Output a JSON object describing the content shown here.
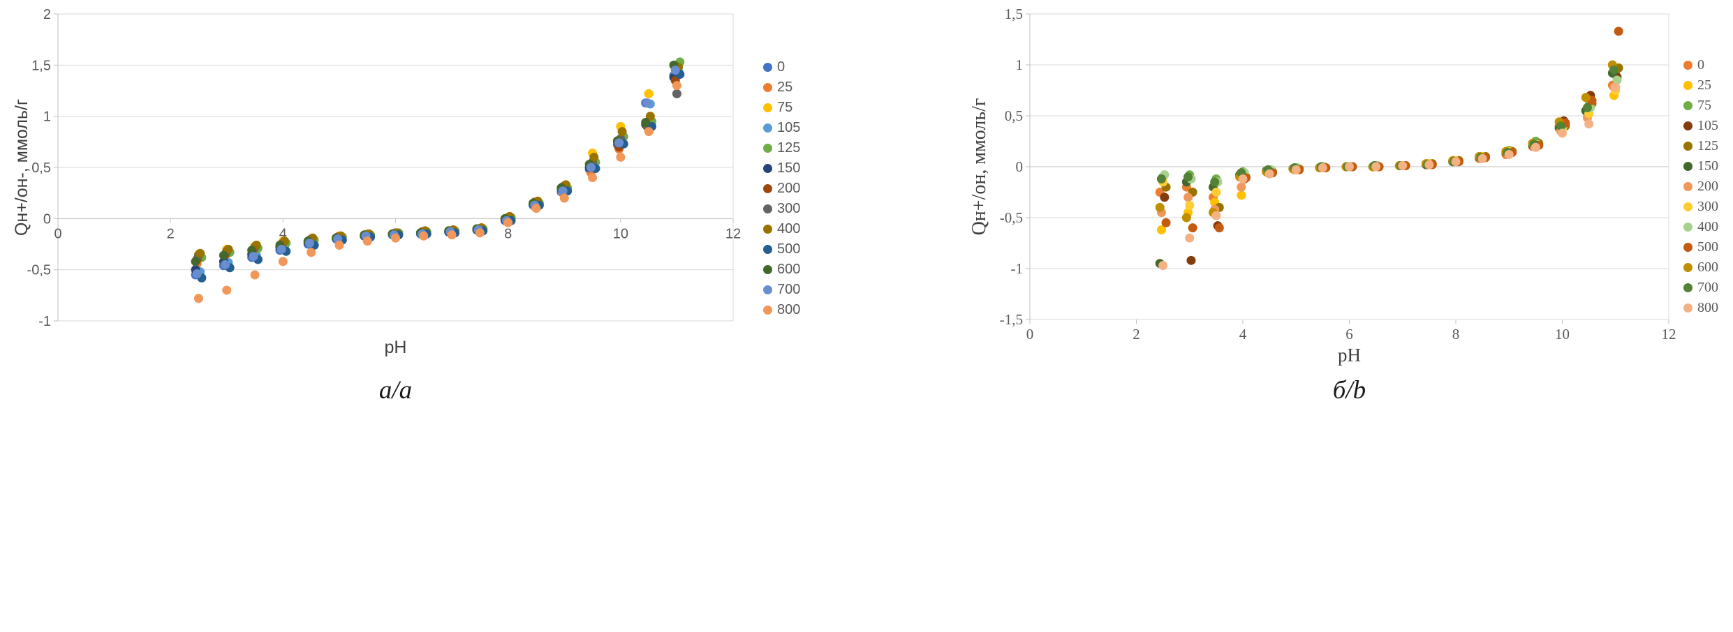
{
  "page": {
    "background": "#FFFFFF"
  },
  "figures": [
    {
      "caption": "a/a"
    },
    {
      "caption": "б/b"
    }
  ],
  "chart_data": [
    {
      "type": "scatter",
      "title": "",
      "xlabel": "pH",
      "ylabel": "Qн+/он-, ммоль/г",
      "xlim": [
        0,
        12
      ],
      "ylim": [
        -1,
        2
      ],
      "xticks": [
        0,
        2,
        4,
        6,
        8,
        10,
        12
      ],
      "xtick_labels": [
        "0",
        "2",
        "4",
        "6",
        "8",
        "10",
        "12"
      ],
      "yticks": [
        -1,
        -0.5,
        0,
        0.5,
        1,
        1.5,
        2
      ],
      "ytick_labels": [
        "-1",
        "-0,5",
        "0",
        "0,5",
        "1",
        "1,5",
        "2"
      ],
      "grid": "horizontal",
      "legend_position": "right",
      "x_label_position": "axis",
      "x": [
        2.5,
        3,
        3.5,
        4,
        4.5,
        5,
        5.5,
        6,
        6.5,
        7,
        7.5,
        8,
        8.5,
        9,
        9.5,
        10,
        10.5,
        11
      ],
      "series": [
        {
          "name": "0",
          "color": "#4472C4",
          "values": [
            -0.55,
            -0.46,
            -0.38,
            -0.31,
            -0.25,
            -0.2,
            -0.17,
            -0.16,
            -0.15,
            -0.13,
            -0.11,
            -0.02,
            0.13,
            0.26,
            0.48,
            0.72,
            1.13,
            1.4
          ]
        },
        {
          "name": "25",
          "color": "#ED7D31",
          "values": [
            -0.44,
            -0.37,
            -0.32,
            -0.27,
            -0.22,
            -0.19,
            -0.17,
            -0.15,
            -0.14,
            -0.13,
            -0.11,
            -0.02,
            0.12,
            0.25,
            0.45,
            0.68,
            0.93,
            1.42
          ]
        },
        {
          "name": "75",
          "color": "#FFC000",
          "values": [
            -0.35,
            -0.3,
            -0.27,
            -0.22,
            -0.2,
            -0.17,
            -0.15,
            -0.14,
            -0.13,
            -0.12,
            -0.1,
            0.0,
            0.15,
            0.3,
            0.64,
            0.9,
            1.22,
            1.47
          ]
        },
        {
          "name": "105",
          "color": "#5B9BD5",
          "values": [
            -0.52,
            -0.43,
            -0.36,
            -0.29,
            -0.24,
            -0.2,
            -0.17,
            -0.15,
            -0.14,
            -0.13,
            -0.11,
            -0.01,
            0.14,
            0.28,
            0.52,
            0.78,
            1.12,
            1.44
          ]
        },
        {
          "name": "125",
          "color": "#70AD47",
          "values": [
            -0.38,
            -0.33,
            -0.29,
            -0.24,
            -0.21,
            -0.18,
            -0.16,
            -0.14,
            -0.13,
            -0.12,
            -0.1,
            0.01,
            0.15,
            0.3,
            0.55,
            0.8,
            0.95,
            1.53
          ]
        },
        {
          "name": "150",
          "color": "#264478",
          "values": [
            -0.5,
            -0.42,
            -0.35,
            -0.28,
            -0.23,
            -0.19,
            -0.17,
            -0.15,
            -0.14,
            -0.13,
            -0.11,
            -0.01,
            0.14,
            0.29,
            0.5,
            0.75,
            0.92,
            1.38
          ]
        },
        {
          "name": "200",
          "color": "#9E480E",
          "values": [
            -0.4,
            -0.35,
            -0.3,
            -0.25,
            -0.21,
            -0.18,
            -0.16,
            -0.15,
            -0.13,
            -0.12,
            -0.1,
            0.0,
            0.16,
            0.31,
            0.52,
            0.7,
            0.9,
            1.35
          ]
        },
        {
          "name": "300",
          "color": "#636363",
          "values": [
            -0.36,
            -0.32,
            -0.28,
            -0.24,
            -0.2,
            -0.18,
            -0.16,
            -0.14,
            -0.13,
            -0.12,
            -0.1,
            0.01,
            0.16,
            0.32,
            0.55,
            0.78,
            0.88,
            1.22
          ]
        },
        {
          "name": "400",
          "color": "#997300",
          "values": [
            -0.34,
            -0.3,
            -0.26,
            -0.22,
            -0.19,
            -0.17,
            -0.15,
            -0.14,
            -0.12,
            -0.11,
            -0.09,
            0.02,
            0.17,
            0.33,
            0.6,
            0.85,
            1.0,
            1.48
          ]
        },
        {
          "name": "500",
          "color": "#255E91",
          "values": [
            -0.58,
            -0.48,
            -0.4,
            -0.32,
            -0.26,
            -0.21,
            -0.18,
            -0.16,
            -0.15,
            -0.14,
            -0.12,
            -0.02,
            0.13,
            0.27,
            0.49,
            0.73,
            0.9,
            1.41
          ]
        },
        {
          "name": "600",
          "color": "#43682B",
          "values": [
            -0.42,
            -0.36,
            -0.31,
            -0.26,
            -0.22,
            -0.19,
            -0.16,
            -0.15,
            -0.14,
            -0.12,
            -0.1,
            0.0,
            0.15,
            0.3,
            0.53,
            0.76,
            0.94,
            1.5
          ]
        },
        {
          "name": "700",
          "color": "#698ED0",
          "values": [
            -0.54,
            -0.45,
            -0.37,
            -0.3,
            -0.24,
            -0.2,
            -0.17,
            -0.16,
            -0.15,
            -0.13,
            -0.11,
            -0.02,
            0.13,
            0.27,
            0.5,
            0.74,
            1.13,
            1.45
          ]
        },
        {
          "name": "800",
          "color": "#F1975A",
          "values": [
            -0.78,
            -0.7,
            -0.55,
            -0.42,
            -0.33,
            -0.26,
            -0.22,
            -0.19,
            -0.17,
            -0.16,
            -0.14,
            -0.04,
            0.1,
            0.2,
            0.4,
            0.6,
            0.85,
            1.3
          ]
        }
      ]
    },
    {
      "type": "scatter",
      "title": "",
      "xlabel": "pH",
      "ylabel": "Qн+/он, ммоль/г",
      "xlim": [
        0,
        12
      ],
      "ylim": [
        -1.5,
        1.5
      ],
      "xticks": [
        0,
        2,
        4,
        6,
        8,
        10,
        12
      ],
      "xtick_labels": [
        "0",
        "2",
        "4",
        "6",
        "8",
        "10",
        "12"
      ],
      "yticks": [
        -1.5,
        -1,
        -0.5,
        0,
        0.5,
        1,
        1.5
      ],
      "ytick_labels": [
        "-1,5",
        "-1",
        "-0,5",
        "0",
        "0,5",
        "1",
        "1,5"
      ],
      "grid": "horizontal",
      "legend_position": "right",
      "x_label_position": "below",
      "x": [
        2.5,
        3,
        3.5,
        4,
        4.5,
        5,
        5.5,
        6,
        6.5,
        7,
        7.5,
        8,
        8.5,
        9,
        9.5,
        10,
        10.5,
        11
      ],
      "series": [
        {
          "name": "0",
          "color": "#ED7D31",
          "values": [
            -0.25,
            -0.2,
            -0.3,
            -0.08,
            -0.05,
            -0.02,
            -0.01,
            0.0,
            0.0,
            0.01,
            0.02,
            0.05,
            0.08,
            0.12,
            0.2,
            0.4,
            0.55,
            0.8
          ]
        },
        {
          "name": "25",
          "color": "#FFC000",
          "values": [
            -0.62,
            -0.45,
            -0.35,
            -0.28,
            -0.06,
            -0.03,
            -0.01,
            0.0,
            0.0,
            0.01,
            0.03,
            0.06,
            0.1,
            0.15,
            0.22,
            0.38,
            0.5,
            0.7
          ]
        },
        {
          "name": "75",
          "color": "#70AD47",
          "values": [
            -0.1,
            -0.08,
            -0.12,
            -0.05,
            -0.03,
            -0.01,
            0.0,
            0.0,
            0.01,
            0.01,
            0.03,
            0.06,
            0.1,
            0.16,
            0.25,
            0.42,
            0.6,
            0.93
          ]
        },
        {
          "name": "105",
          "color": "#843C0C",
          "values": [
            -0.3,
            -0.92,
            -0.58,
            -0.12,
            -0.06,
            -0.02,
            -0.01,
            0.0,
            0.0,
            0.01,
            0.02,
            0.05,
            0.09,
            0.14,
            0.22,
            0.45,
            0.7,
            0.88
          ]
        },
        {
          "name": "125",
          "color": "#997300",
          "values": [
            -0.2,
            -0.25,
            -0.4,
            -0.1,
            -0.05,
            -0.02,
            -0.01,
            0.0,
            0.0,
            0.01,
            0.03,
            0.06,
            0.1,
            0.15,
            0.23,
            0.4,
            0.62,
            0.97
          ]
        },
        {
          "name": "150",
          "color": "#43682B",
          "values": [
            -0.95,
            -0.15,
            -0.2,
            -0.08,
            -0.04,
            -0.02,
            -0.01,
            0.0,
            0.0,
            0.01,
            0.02,
            0.05,
            0.09,
            0.14,
            0.21,
            0.38,
            0.55,
            0.92
          ]
        },
        {
          "name": "200",
          "color": "#F1975A",
          "values": [
            -0.45,
            -0.3,
            -0.42,
            -0.2,
            -0.06,
            -0.03,
            -0.01,
            0.0,
            0.0,
            0.01,
            0.02,
            0.05,
            0.08,
            0.13,
            0.2,
            0.35,
            0.48,
            0.78
          ]
        },
        {
          "name": "300",
          "color": "#FFCD33",
          "values": [
            -0.15,
            -0.38,
            -0.25,
            -0.09,
            -0.05,
            -0.02,
            -0.01,
            0.0,
            0.0,
            0.01,
            0.03,
            0.06,
            0.1,
            0.15,
            0.22,
            0.37,
            0.52,
            0.75
          ]
        },
        {
          "name": "400",
          "color": "#A9D18E",
          "values": [
            -0.08,
            -0.12,
            -0.15,
            -0.06,
            -0.03,
            -0.01,
            0.0,
            0.0,
            0.01,
            0.01,
            0.02,
            0.05,
            0.09,
            0.14,
            0.22,
            0.41,
            0.58,
            0.85
          ]
        },
        {
          "name": "500",
          "color": "#C55A11",
          "values": [
            -0.55,
            -0.6,
            -0.6,
            -0.11,
            -0.06,
            -0.03,
            -0.01,
            0.0,
            0.0,
            0.01,
            0.02,
            0.05,
            0.09,
            0.14,
            0.21,
            0.43,
            0.65,
            1.33
          ]
        },
        {
          "name": "600",
          "color": "#BF8F00",
          "values": [
            -0.4,
            -0.5,
            -0.45,
            -0.1,
            -0.05,
            -0.02,
            -0.01,
            0.0,
            0.0,
            0.01,
            0.03,
            0.06,
            0.1,
            0.15,
            0.23,
            0.44,
            0.68,
            1.0
          ]
        },
        {
          "name": "700",
          "color": "#538135",
          "values": [
            -0.12,
            -0.1,
            -0.15,
            -0.06,
            -0.03,
            -0.01,
            0.0,
            0.0,
            0.01,
            0.01,
            0.02,
            0.05,
            0.09,
            0.14,
            0.22,
            0.4,
            0.58,
            0.95
          ]
        },
        {
          "name": "800",
          "color": "#F4B183",
          "values": [
            -0.97,
            -0.7,
            -0.48,
            -0.12,
            -0.07,
            -0.03,
            -0.01,
            0.0,
            0.0,
            0.01,
            0.02,
            0.05,
            0.08,
            0.12,
            0.19,
            0.33,
            0.42,
            0.78
          ]
        }
      ]
    }
  ]
}
